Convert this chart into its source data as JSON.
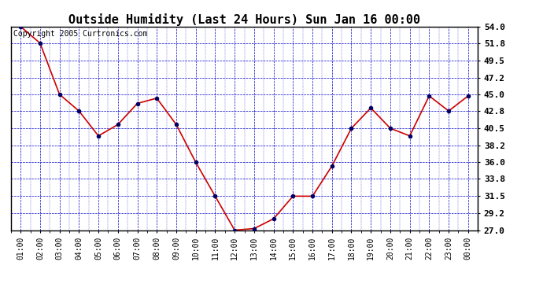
{
  "title": "Outside Humidity (Last 24 Hours) Sun Jan 16 00:00",
  "copyright": "Copyright 2005 Curtronics.com",
  "x_labels": [
    "01:00",
    "02:00",
    "03:00",
    "04:00",
    "05:00",
    "06:00",
    "07:00",
    "08:00",
    "09:00",
    "10:00",
    "11:00",
    "12:00",
    "13:00",
    "14:00",
    "15:00",
    "16:00",
    "17:00",
    "18:00",
    "19:00",
    "20:00",
    "21:00",
    "22:00",
    "23:00",
    "00:00"
  ],
  "x_values": [
    1,
    2,
    3,
    4,
    5,
    6,
    7,
    8,
    9,
    10,
    11,
    12,
    13,
    14,
    15,
    16,
    17,
    18,
    19,
    20,
    21,
    22,
    23,
    24
  ],
  "y_values": [
    54.0,
    51.8,
    45.0,
    42.8,
    39.5,
    41.0,
    43.8,
    44.5,
    41.0,
    36.0,
    31.5,
    27.0,
    27.2,
    28.5,
    31.5,
    31.5,
    35.5,
    40.5,
    43.2,
    40.5,
    39.5,
    44.8,
    42.8,
    44.8
  ],
  "y_ticks": [
    27.0,
    29.2,
    31.5,
    33.8,
    36.0,
    38.2,
    40.5,
    42.8,
    45.0,
    47.2,
    49.5,
    51.8,
    54.0
  ],
  "ylim": [
    27.0,
    54.0
  ],
  "line_color": "#cc0000",
  "marker_color": "#000066",
  "bg_color": "#ffffff",
  "grid_color": "#0000cc",
  "plot_border_color": "#000000",
  "title_fontsize": 11,
  "copyright_fontsize": 7,
  "tick_fontsize": 7,
  "ytick_fontsize": 8
}
